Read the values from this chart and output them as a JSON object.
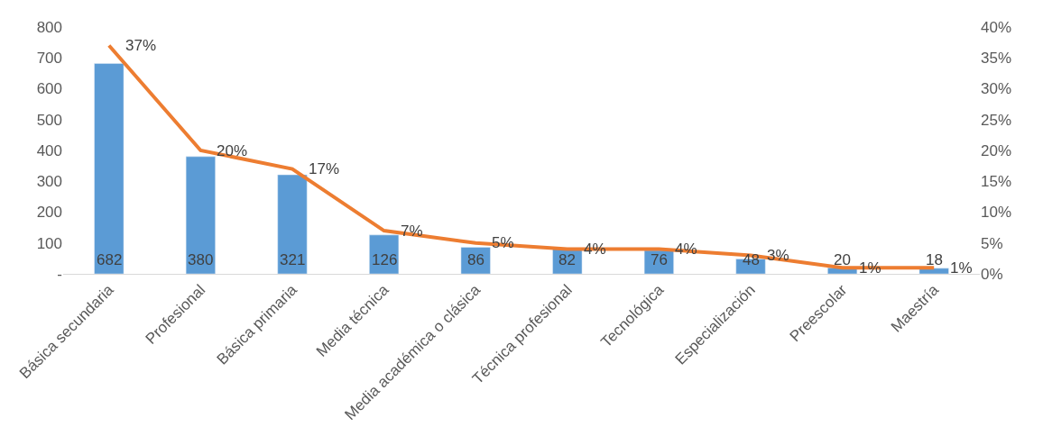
{
  "chart_data": {
    "type": "bar",
    "categories": [
      "Básica secundaria",
      "Profesional",
      "Básica primaria",
      "Media técnica",
      "Media académica o clásica",
      "Técnica profesional",
      "Tecnológica",
      "Especialización",
      "Preescolar",
      "Maestría"
    ],
    "series": [
      {
        "color": "#5b9bd5",
        "values": [
          682,
          380,
          321,
          126,
          86,
          82,
          76,
          48,
          20,
          18
        ],
        "value_labels": [
          "682",
          "380",
          "321",
          "126",
          "86",
          "82",
          "76",
          "48",
          "20",
          "18"
        ]
      },
      {
        "type": "line",
        "axis": "y2",
        "color": "#ed7d31",
        "values": [
          37,
          20,
          17,
          7,
          5,
          4,
          4,
          3,
          1,
          1
        ],
        "value_labels": [
          "37%",
          "20%",
          "17%",
          "7%",
          "5%",
          "4%",
          "4%",
          "3%",
          "1%",
          "1%"
        ]
      }
    ],
    "ylim": [
      0,
      800
    ],
    "yticks": [
      {
        "value": 0,
        "label": "-"
      },
      100,
      200,
      300,
      400,
      500,
      600,
      700,
      800
    ],
    "y2lim": [
      0,
      40
    ],
    "y2ticks": [
      {
        "value": 0,
        "label": "0%"
      },
      {
        "value": 5,
        "label": "5%"
      },
      {
        "value": 10,
        "label": "10%"
      },
      {
        "value": 15,
        "label": "15%"
      },
      {
        "value": 20,
        "label": "20%"
      },
      {
        "value": 25,
        "label": "25%"
      },
      {
        "value": 30,
        "label": "30%"
      },
      {
        "value": 35,
        "label": "35%"
      },
      {
        "value": 40,
        "label": "40%"
      }
    ],
    "legend": false,
    "marker": "none",
    "line_style": "solid"
  }
}
